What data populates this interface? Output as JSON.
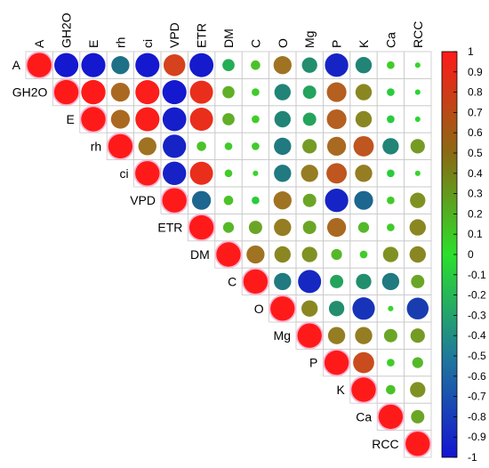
{
  "chart_data": {
    "type": "heatmap",
    "variables": [
      "A",
      "GH2O",
      "E",
      "rh",
      "ci",
      "VPD",
      "ETR",
      "DM",
      "C",
      "O",
      "Mg",
      "P",
      "K",
      "Ca",
      "RCC"
    ],
    "matrix": [
      [
        1.0,
        -0.98,
        -0.98,
        -0.55,
        -0.98,
        0.8,
        -0.97,
        -0.25,
        0.15,
        0.55,
        -0.4,
        -0.92,
        -0.45,
        0.1,
        0.05
      ],
      [
        -0.98,
        1.0,
        1.0,
        0.6,
        0.98,
        -0.98,
        0.9,
        0.25,
        0.1,
        -0.45,
        -0.3,
        0.65,
        0.45,
        -0.1,
        -0.05
      ],
      [
        -0.98,
        1.0,
        1.0,
        0.6,
        0.98,
        -0.95,
        0.9,
        0.25,
        0.1,
        -0.45,
        -0.3,
        0.65,
        0.45,
        -0.1,
        -0.05
      ],
      [
        -0.55,
        0.6,
        0.6,
        1.0,
        0.55,
        -0.92,
        0.15,
        0.1,
        0.1,
        -0.5,
        0.35,
        0.6,
        0.7,
        -0.45,
        0.35
      ],
      [
        -0.98,
        0.98,
        0.98,
        0.55,
        1.0,
        -0.93,
        0.9,
        0.1,
        0.05,
        -0.5,
        0.5,
        0.7,
        0.5,
        -0.1,
        0.05
      ],
      [
        0.8,
        -0.98,
        -0.95,
        -0.92,
        -0.93,
        1.0,
        -0.6,
        0.15,
        -0.1,
        0.55,
        0.3,
        -0.92,
        -0.6,
        0.1,
        0.4
      ],
      [
        -0.97,
        0.9,
        0.9,
        0.15,
        0.9,
        -0.6,
        1.0,
        0.2,
        0.3,
        0.5,
        0.3,
        0.6,
        0.2,
        0.1,
        0.45
      ],
      [
        -0.25,
        0.25,
        0.25,
        0.1,
        0.1,
        0.15,
        0.2,
        1.0,
        0.55,
        0.45,
        0.4,
        0.2,
        0.1,
        0.4,
        0.45
      ],
      [
        0.15,
        0.1,
        0.1,
        0.1,
        0.05,
        -0.1,
        0.3,
        0.55,
        1.0,
        -0.5,
        -0.9,
        -0.3,
        -0.4,
        -0.5,
        0.3
      ],
      [
        0.55,
        -0.45,
        -0.45,
        -0.5,
        -0.5,
        0.55,
        0.5,
        0.45,
        -0.5,
        1.0,
        0.45,
        -0.4,
        -0.85,
        0.05,
        -0.8
      ],
      [
        -0.4,
        -0.3,
        -0.3,
        0.35,
        0.5,
        0.3,
        0.3,
        0.4,
        -0.9,
        0.45,
        1.0,
        0.5,
        0.5,
        0.3,
        0.35
      ],
      [
        -0.92,
        0.65,
        0.65,
        0.6,
        0.7,
        -0.92,
        0.6,
        0.2,
        -0.3,
        -0.4,
        0.5,
        1.0,
        0.75,
        0.1,
        0.2
      ],
      [
        -0.45,
        0.45,
        0.45,
        0.7,
        0.5,
        -0.6,
        0.2,
        0.1,
        -0.4,
        -0.85,
        0.5,
        0.75,
        1.0,
        0.15,
        0.4
      ],
      [
        0.1,
        -0.1,
        -0.1,
        -0.45,
        -0.1,
        0.1,
        0.1,
        0.4,
        -0.5,
        0.05,
        0.3,
        0.1,
        0.15,
        1.0,
        0.3
      ],
      [
        0.05,
        -0.05,
        -0.05,
        0.35,
        0.05,
        0.4,
        0.45,
        0.45,
        0.3,
        -0.8,
        0.35,
        0.2,
        0.4,
        0.3,
        1.0
      ]
    ],
    "colorbar": {
      "ticks": [
        "1",
        "0.9",
        "0.8",
        "0.7",
        "0.6",
        "0.5",
        "0.4",
        "0.3",
        "0.2",
        "0.1",
        "0",
        "-0.1",
        "-0.2",
        "-0.3",
        "-0.4",
        "-0.5",
        "-0.6",
        "-0.7",
        "-0.8",
        "-0.9",
        "-1"
      ],
      "range": [
        -1,
        1
      ]
    },
    "colors": {
      "negative": "#1414d2",
      "zero": "#2be02b",
      "positive": "#ff1a1a",
      "grid": "#c8c8c8",
      "diagonal_halo": "#f6a6c8"
    },
    "layout": "upper-triangle"
  }
}
